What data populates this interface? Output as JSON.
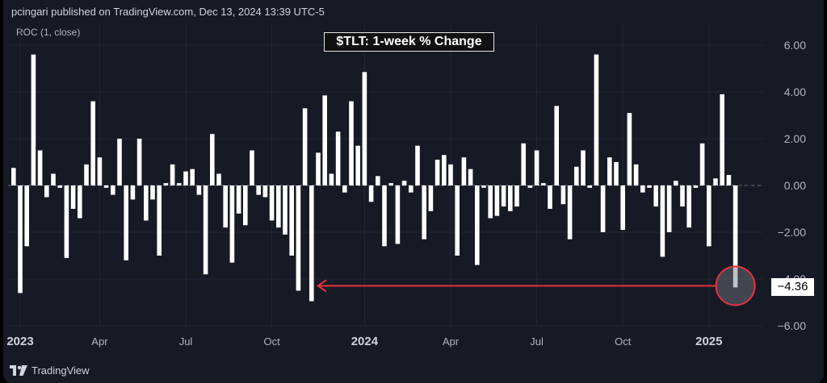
{
  "header": {
    "publisher_line": "pcingari published on TradingView.com, Dec 13, 2024 13:39 UTC-5",
    "indicator_label": "ROC (1, close)"
  },
  "footer": {
    "brand": "TradingView"
  },
  "colors": {
    "background": "#161a25",
    "bars": "#ffffff",
    "axis_text": "#b2b5be",
    "grid": "#232734",
    "annotation": "#e8323c",
    "zero_line": "#6b6f7a"
  },
  "chart_data": {
    "type": "bar",
    "title": "$TLT: 1-week % Change",
    "xlabel": "",
    "ylabel": "",
    "ylim": [
      -6,
      6.5
    ],
    "yticks": [
      6,
      4,
      2,
      0,
      -2,
      -4,
      -6
    ],
    "ytick_labels": [
      "6.00",
      "4.00",
      "2.00",
      "0.00",
      "−2.00",
      "−4.00",
      "−6.00"
    ],
    "x_tick_labels": [
      {
        "label": "2023",
        "bold": true,
        "week": 1
      },
      {
        "label": "Apr",
        "bold": false,
        "week": 13
      },
      {
        "label": "Jul",
        "bold": false,
        "week": 26
      },
      {
        "label": "Oct",
        "bold": false,
        "week": 39
      },
      {
        "label": "2024",
        "bold": true,
        "week": 53
      },
      {
        "label": "Apr",
        "bold": false,
        "week": 66
      },
      {
        "label": "Jul",
        "bold": false,
        "week": 79
      },
      {
        "label": "Oct",
        "bold": false,
        "week": 92
      },
      {
        "label": "2025",
        "bold": true,
        "week": 105
      }
    ],
    "grid": true,
    "last_value": -4.36,
    "last_value_label": "−4.36",
    "annotation": "arrow from last bar back to Oct 2023 low with circle highlight on last bar",
    "values": [
      0.75,
      -4.6,
      -2.6,
      5.6,
      1.5,
      -0.5,
      0.5,
      -0.1,
      -3.1,
      -1.0,
      -1.4,
      0.9,
      3.6,
      1.2,
      -0.1,
      -0.4,
      2.0,
      -3.2,
      -0.6,
      2.0,
      -1.5,
      -0.6,
      -3.0,
      0.1,
      0.9,
      0.1,
      0.6,
      0.7,
      -0.4,
      -3.8,
      2.2,
      0.5,
      -1.8,
      -3.3,
      -1.2,
      -1.7,
      1.5,
      -0.4,
      -0.5,
      -1.5,
      -1.8,
      -2.1,
      -3.0,
      -4.5,
      3.3,
      -4.95,
      1.4,
      3.85,
      0.5,
      2.3,
      -0.3,
      3.6,
      1.7,
      4.85,
      -0.7,
      0.4,
      -2.6,
      0.1,
      -2.5,
      0.2,
      -0.3,
      1.7,
      -2.3,
      -1.1,
      1.1,
      1.3,
      0.9,
      -3.0,
      1.2,
      0.7,
      -3.4,
      -0.1,
      -1.4,
      -1.3,
      -0.9,
      -1.1,
      -0.9,
      1.8,
      -0.1,
      1.5,
      0.1,
      -1.0,
      3.4,
      -0.8,
      -2.3,
      0.8,
      1.5,
      -0.1,
      5.6,
      -2.0,
      1.2,
      1.0,
      -1.9,
      3.1,
      0.9,
      -0.3,
      -0.1,
      -0.9,
      -3.05,
      -2.0,
      0.2,
      -0.9,
      -1.8,
      -0.1,
      1.8,
      -2.6,
      0.3,
      3.9,
      0.45,
      -4.36
    ]
  }
}
